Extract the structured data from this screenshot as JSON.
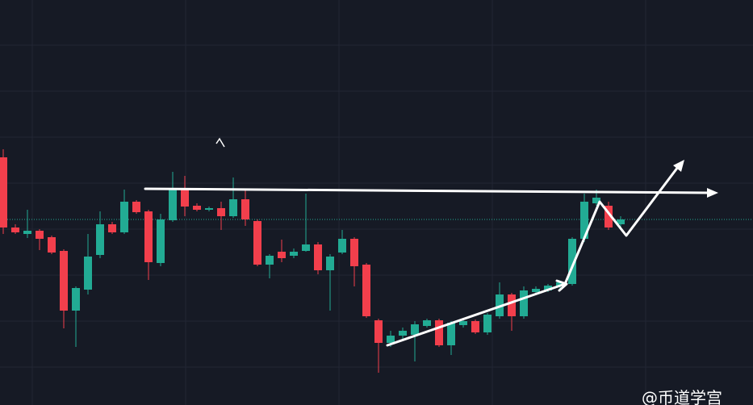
{
  "chart_data": {
    "type": "candlestick",
    "ylim": [
      0,
      502
    ],
    "up_color": "#22ab94",
    "down_color": "#f23f4c",
    "price_line": 230,
    "watermark": "@币道学宫",
    "candles": {
      "open": [
        307,
        220,
        212,
        216,
        208,
        191,
        117,
        143,
        186,
        224,
        214,
        252,
        240,
        176,
        229,
        268,
        247,
        242,
        244,
        234,
        255,
        228,
        174,
        190,
        185,
        191,
        199,
        167,
        189,
        206,
        174,
        105,
        77,
        86,
        87,
        98,
        105,
        74,
        99,
        104,
        90,
        110,
        137,
        110,
        140,
        142,
        147,
        150,
        206,
        250,
        247,
        224
      ],
      "high": [
        317,
        224,
        242,
        218,
        210,
        193,
        147,
        212,
        240,
        227,
        267,
        254,
        242,
        237,
        289,
        284,
        250,
        246,
        252,
        282,
        267,
        230,
        187,
        205,
        194,
        262,
        202,
        187,
        217,
        208,
        176,
        107,
        92,
        96,
        104,
        107,
        107,
        104,
        106,
        106,
        114,
        152,
        139,
        147,
        147,
        150,
        154,
        208,
        262,
        267,
        252,
        234
      ],
      "low": [
        212,
        212,
        207,
        192,
        187,
        95,
        72,
        137,
        182,
        212,
        212,
        237,
        155,
        172,
        227,
        234,
        240,
        240,
        217,
        232,
        222,
        172,
        157,
        177,
        182,
        190,
        162,
        117,
        187,
        147,
        108,
        40,
        72,
        82,
        54,
        96,
        72,
        62,
        96,
        88,
        87,
        107,
        92,
        107,
        137,
        140,
        144,
        148,
        202,
        247,
        217,
        220
      ],
      "close": [
        220,
        214,
        216,
        206,
        189,
        117,
        145,
        184,
        224,
        214,
        252,
        239,
        177,
        230,
        267,
        246,
        242,
        244,
        234,
        255,
        230,
        174,
        185,
        182,
        190,
        199,
        167,
        184,
        206,
        172,
        110,
        77,
        86,
        92,
        100,
        105,
        74,
        102,
        104,
        90,
        112,
        137,
        110,
        142,
        144,
        148,
        152,
        206,
        252,
        257,
        220,
        230
      ]
    }
  }
}
